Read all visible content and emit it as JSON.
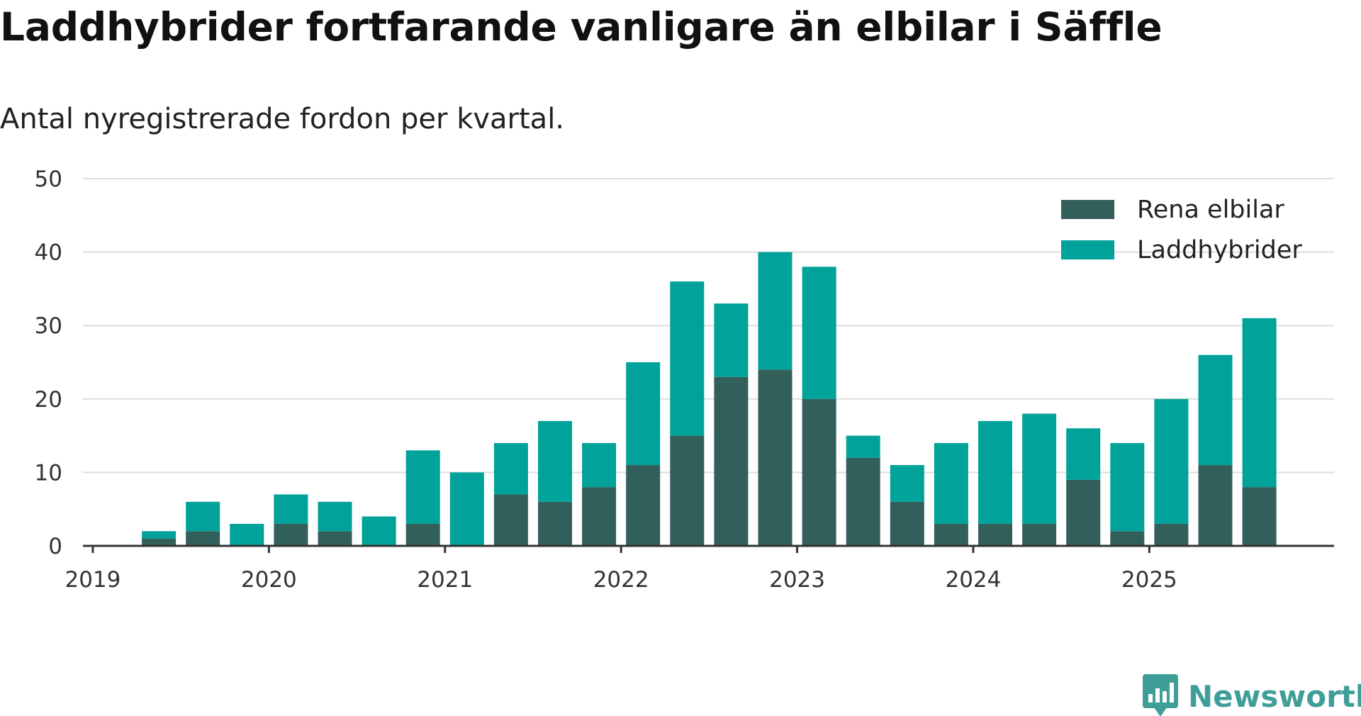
{
  "title": "Laddhybrider fortfarande vanligare än elbilar i Säffle",
  "subtitle": "Antal nyregistrerade fordon per kvartal.",
  "brand": {
    "name": "Newsworthy",
    "logo_icon": "newsworthy-bar-chart-bubble-icon",
    "color": "#3f9e98"
  },
  "colors": {
    "rena_elbilar": "#335f5b",
    "laddhybrider": "#00a29a",
    "grid": "#dddddd",
    "axis": "#333333"
  },
  "chart_data": {
    "type": "bar",
    "stacked": true,
    "title": "Laddhybrider fortfarande vanligare än elbilar i Säffle",
    "subtitle": "Antal nyregistrerade fordon per kvartal.",
    "xlabel": "",
    "ylabel": "",
    "ylim": [
      0,
      50
    ],
    "yticks": [
      0,
      10,
      20,
      30,
      40,
      50
    ],
    "grid": true,
    "legend_position": "top-right",
    "year_ticks": [
      "2019",
      "2020",
      "2021",
      "2022",
      "2023",
      "2024",
      "2025"
    ],
    "categories": [
      "2019 Q1",
      "2019 Q2",
      "2019 Q3",
      "2019 Q4",
      "2020 Q1",
      "2020 Q2",
      "2020 Q3",
      "2020 Q4",
      "2021 Q1",
      "2021 Q2",
      "2021 Q3",
      "2021 Q4",
      "2022 Q1",
      "2022 Q2",
      "2022 Q3",
      "2022 Q4",
      "2023 Q1",
      "2023 Q2",
      "2023 Q3",
      "2023 Q4",
      "2024 Q1",
      "2024 Q2",
      "2024 Q3",
      "2024 Q4",
      "2025 Q1",
      "2025 Q2",
      "2025 Q3"
    ],
    "series": [
      {
        "name": "Rena elbilar",
        "color": "#335f5b",
        "values": [
          0,
          1,
          2,
          0,
          3,
          2,
          0,
          3,
          0,
          7,
          6,
          8,
          11,
          15,
          23,
          24,
          20,
          12,
          6,
          3,
          3,
          3,
          9,
          2,
          3,
          11,
          8
        ]
      },
      {
        "name": "Laddhybrider",
        "color": "#00a29a",
        "values": [
          0,
          1,
          4,
          3,
          4,
          4,
          4,
          10,
          10,
          7,
          11,
          6,
          14,
          21,
          10,
          16,
          18,
          3,
          5,
          11,
          14,
          15,
          7,
          12,
          17,
          15,
          23
        ]
      }
    ]
  }
}
